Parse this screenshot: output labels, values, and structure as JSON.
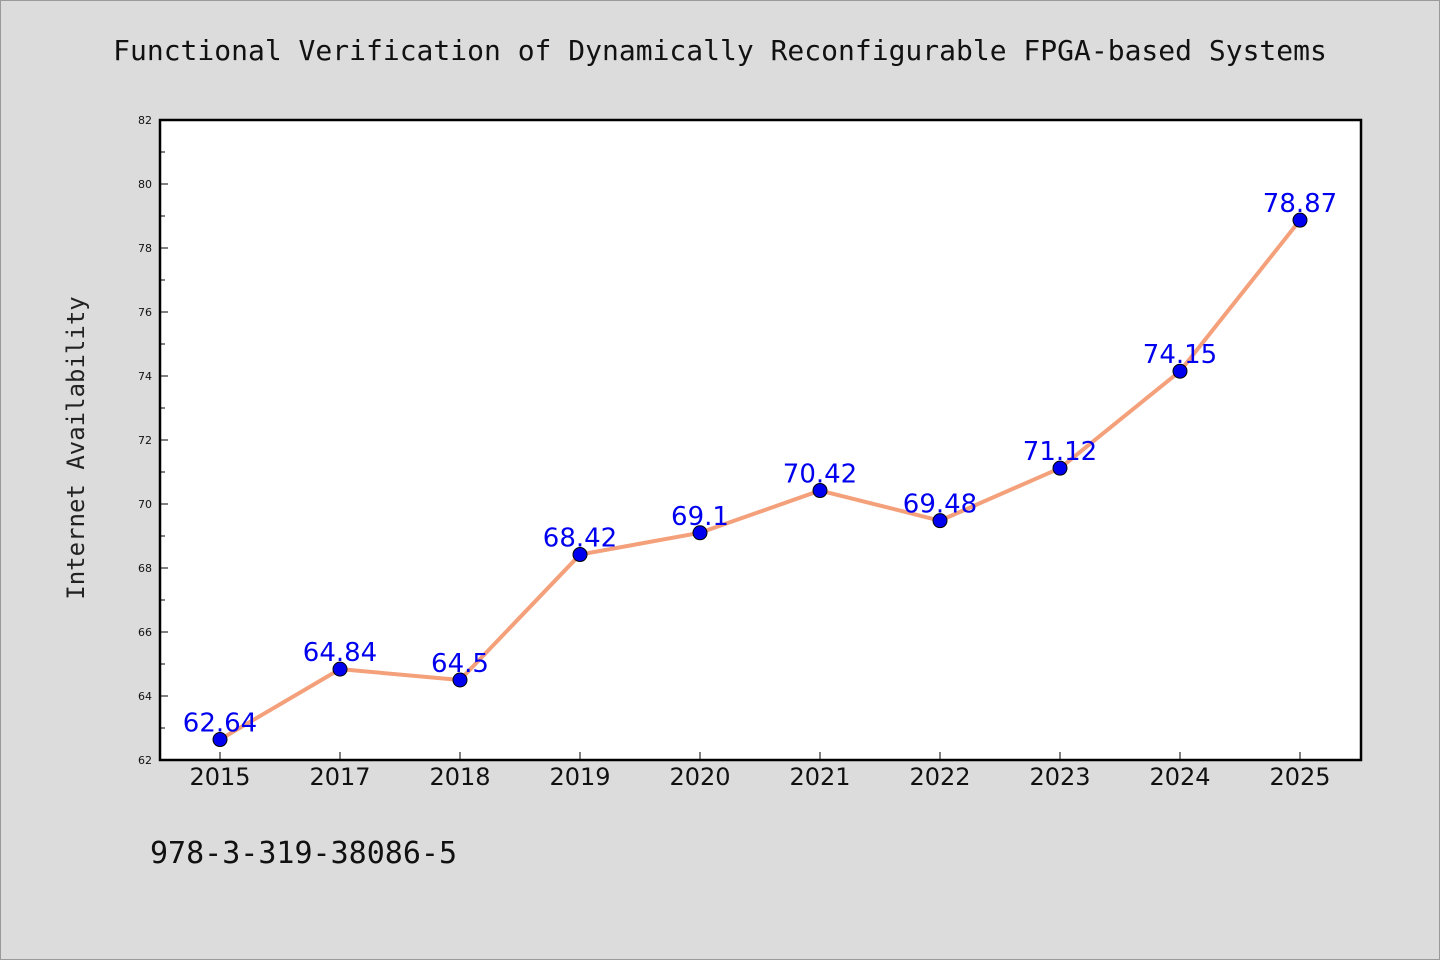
{
  "title": "Functional Verification of Dynamically Reconfigurable FPGA-based Systems",
  "footer_code": "978-3-319-38086-5",
  "chart_data": {
    "type": "line",
    "title": "Functional Verification of Dynamically Reconfigurable FPGA-based Systems",
    "xlabel": "",
    "ylabel": "Internet Availability",
    "categories": [
      "2015",
      "2017",
      "2018",
      "2019",
      "2020",
      "2021",
      "2022",
      "2023",
      "2024",
      "2025"
    ],
    "series": [
      {
        "values": [
          62.64,
          64.84,
          64.5,
          68.42,
          69.1,
          70.42,
          69.48,
          71.12,
          74.15,
          78.87
        ],
        "labels": [
          "62.64",
          "64.84",
          "64.5",
          "68.42",
          "69.1",
          "70.42",
          "69.48",
          "71.12",
          "74.15",
          "78.87"
        ]
      }
    ],
    "ylim": [
      62,
      82
    ],
    "yticks": [
      "62",
      "64",
      "66",
      "68",
      "70",
      "72",
      "74",
      "76",
      "78",
      "80",
      "82"
    ],
    "grid": false,
    "legend": "none",
    "colors": {
      "line": "#f4a07a",
      "marker": "#0000ee",
      "label": "#0000ee",
      "plot_bg": "#ffffff",
      "page_bg": "#dcdcdc"
    }
  }
}
